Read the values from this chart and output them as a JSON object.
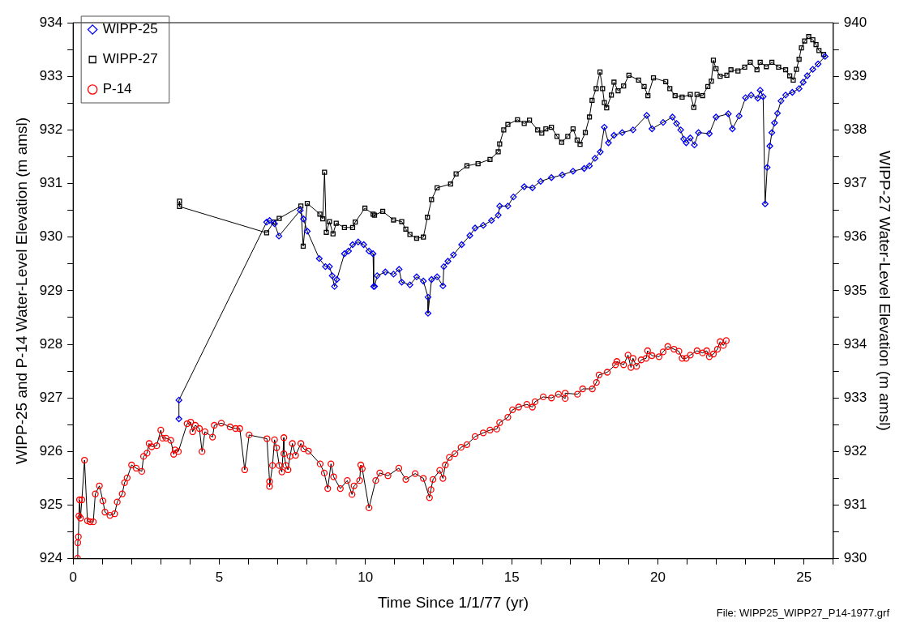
{
  "chart_data": {
    "type": "line",
    "xlabel": "Time Since 1/1/77 (yr)",
    "ylabel": "WIPP-25 and P-14 Water-Level Elevation (m amsl)",
    "y2label": "WIPP-27 Water-Level Elevation (m amsl)",
    "annotations": [
      "File: WIPP25_WIPP27_P14-1977.grf"
    ],
    "legend": "top left",
    "grid": false,
    "xlim": [
      0,
      26
    ],
    "xticks": [
      0,
      {
        "value": 1,
        "label": null
      },
      {
        "value": 2,
        "label": null
      },
      {
        "value": 3,
        "label": null
      },
      {
        "value": 4,
        "label": null
      },
      5,
      {
        "value": 6,
        "label": null
      },
      {
        "value": 7,
        "label": null
      },
      {
        "value": 8,
        "label": null
      },
      {
        "value": 9,
        "label": null
      },
      10,
      {
        "value": 11,
        "label": null
      },
      {
        "value": 12,
        "label": null
      },
      {
        "value": 13,
        "label": null
      },
      {
        "value": 14,
        "label": null
      },
      15,
      {
        "value": 16,
        "label": null
      },
      {
        "value": 17,
        "label": null
      },
      {
        "value": 18,
        "label": null
      },
      {
        "value": 19,
        "label": null
      },
      20,
      {
        "value": 21,
        "label": null
      },
      {
        "value": 22,
        "label": null
      },
      {
        "value": 23,
        "label": null
      },
      {
        "value": 24,
        "label": null
      },
      25,
      {
        "value": 26,
        "label": null
      }
    ],
    "ylim": [
      924,
      934
    ],
    "yticks": [
      924,
      {
        "value": 924.5,
        "label": null
      },
      925,
      {
        "value": 925.5,
        "label": null
      },
      926,
      {
        "value": 926.5,
        "label": null
      },
      927,
      {
        "value": 927.5,
        "label": null
      },
      928,
      {
        "value": 928.5,
        "label": null
      },
      929,
      {
        "value": 929.5,
        "label": null
      },
      930,
      {
        "value": 930.5,
        "label": null
      },
      931,
      {
        "value": 931.5,
        "label": null
      },
      932,
      {
        "value": 932.5,
        "label": null
      },
      933,
      {
        "value": 933.5,
        "label": null
      },
      934
    ],
    "y2lim": [
      930,
      940
    ],
    "y2ticks": [
      930,
      {
        "value": 930.5,
        "label": null
      },
      931,
      {
        "value": 931.5,
        "label": null
      },
      932,
      {
        "value": 932.5,
        "label": null
      },
      933,
      {
        "value": 933.5,
        "label": null
      },
      934,
      {
        "value": 934.5,
        "label": null
      },
      935,
      {
        "value": 935.5,
        "label": null
      },
      936,
      {
        "value": 936.5,
        "label": null
      },
      937,
      {
        "value": 937.5,
        "label": null
      },
      938,
      {
        "value": 938.5,
        "label": null
      },
      939,
      {
        "value": 939.5,
        "label": null
      },
      940
    ],
    "series": [
      {
        "name": "WIPP-25",
        "color": "#0000ff",
        "marker": "diamond",
        "x": [
          3.62,
          3.62,
          6.62,
          6.72,
          6.89,
          7.04,
          7.77,
          7.88,
          8.01,
          8.42,
          8.63,
          8.77,
          8.86,
          8.94,
          9.02,
          9.28,
          9.42,
          9.56,
          9.75,
          9.94,
          10.12,
          10.26,
          10.28,
          10.31,
          10.4,
          10.68,
          10.96,
          11.15,
          11.24,
          11.52,
          11.75,
          11.98,
          12.14,
          12.14,
          12.26,
          12.45,
          12.65,
          12.68,
          12.82,
          13.01,
          13.29,
          13.57,
          13.75,
          14.03,
          14.31,
          14.54,
          14.59,
          14.87,
          15.06,
          15.43,
          15.71,
          15.99,
          16.36,
          16.73,
          17.1,
          17.48,
          17.66,
          17.85,
          18.03,
          18.17,
          18.31,
          18.5,
          18.78,
          19.15,
          19.62,
          19.8,
          20.18,
          20.5,
          20.64,
          20.78,
          20.88,
          20.97,
          21.11,
          21.25,
          21.39,
          21.76,
          21.99,
          22.41,
          22.55,
          22.78,
          23.0,
          23.19,
          23.42,
          23.5,
          23.6,
          23.67,
          23.74,
          23.83,
          23.9,
          23.99,
          24.09,
          24.21,
          24.37,
          24.6,
          24.83,
          24.97,
          25.11,
          25.3,
          25.48,
          25.72
        ],
        "values": [
          926.61,
          926.96,
          930.28,
          930.31,
          930.25,
          930.02,
          930.5,
          930.34,
          930.11,
          929.6,
          929.45,
          929.45,
          929.28,
          929.08,
          929.21,
          929.69,
          929.74,
          929.86,
          929.91,
          929.86,
          929.74,
          929.69,
          929.08,
          929.08,
          929.28,
          929.35,
          929.31,
          929.4,
          929.16,
          929.11,
          929.26,
          929.18,
          928.88,
          928.58,
          929.21,
          929.26,
          929.09,
          929.45,
          929.55,
          929.67,
          929.86,
          930.03,
          930.17,
          930.22,
          930.31,
          930.41,
          930.58,
          930.58,
          930.75,
          930.94,
          930.92,
          931.04,
          931.11,
          931.16,
          931.23,
          931.28,
          931.33,
          931.47,
          931.59,
          932.05,
          931.76,
          931.9,
          931.95,
          932.0,
          932.27,
          932.02,
          932.14,
          932.24,
          932.12,
          932.0,
          931.83,
          931.76,
          931.85,
          931.72,
          931.95,
          931.93,
          932.24,
          932.3,
          932.02,
          932.26,
          932.6,
          932.65,
          932.59,
          932.74,
          932.62,
          930.62,
          931.3,
          931.7,
          931.95,
          932.13,
          932.31,
          932.54,
          932.65,
          932.7,
          932.77,
          932.89,
          933.01,
          933.13,
          933.23,
          933.37
        ]
      },
      {
        "name": "WIPP-27",
        "color": "#000000",
        "marker": "square",
        "axis": "y2",
        "x": [
          3.64,
          3.64,
          6.62,
          6.86,
          7.05,
          7.79,
          7.87,
          8.01,
          8.44,
          8.54,
          8.6,
          8.66,
          8.77,
          8.89,
          9.0,
          9.28,
          9.56,
          9.65,
          9.98,
          10.26,
          10.31,
          10.59,
          10.96,
          11.24,
          11.38,
          11.52,
          11.75,
          11.98,
          12.12,
          12.26,
          12.45,
          12.91,
          13.1,
          13.47,
          13.85,
          14.26,
          14.54,
          14.59,
          14.73,
          14.87,
          15.2,
          15.43,
          15.61,
          15.89,
          16.03,
          16.17,
          16.36,
          16.55,
          16.71,
          16.92,
          17.1,
          17.24,
          17.34,
          17.52,
          17.66,
          17.75,
          17.89,
          18.02,
          18.11,
          18.17,
          18.25,
          18.41,
          18.5,
          18.64,
          18.83,
          19.01,
          19.34,
          19.53,
          19.66,
          19.85,
          20.27,
          20.41,
          20.59,
          20.83,
          21.11,
          21.23,
          21.34,
          21.53,
          21.71,
          21.83,
          21.9,
          21.99,
          22.13,
          22.36,
          22.5,
          22.74,
          22.97,
          23.16,
          23.39,
          23.5,
          23.71,
          23.9,
          24.13,
          24.37,
          24.51,
          24.63,
          24.74,
          24.83,
          24.91,
          25.02,
          25.16,
          25.3,
          25.41,
          25.51,
          25.67
        ],
        "values": [
          936.67,
          936.57,
          936.08,
          936.28,
          936.35,
          936.58,
          935.83,
          936.63,
          936.43,
          936.34,
          937.21,
          936.09,
          936.29,
          936.06,
          936.26,
          936.18,
          936.18,
          936.28,
          936.54,
          936.43,
          936.41,
          936.48,
          936.32,
          936.29,
          936.15,
          936.05,
          935.98,
          936.0,
          936.37,
          936.7,
          936.92,
          936.99,
          937.18,
          937.33,
          937.37,
          937.45,
          937.59,
          937.74,
          938.0,
          938.1,
          938.19,
          938.12,
          938.18,
          938.0,
          937.94,
          938.02,
          938.05,
          937.88,
          937.77,
          937.88,
          938.02,
          937.81,
          937.73,
          937.95,
          938.24,
          938.55,
          938.77,
          939.08,
          938.77,
          938.51,
          938.41,
          938.65,
          938.89,
          938.73,
          938.82,
          939.02,
          938.93,
          938.81,
          938.64,
          938.97,
          938.9,
          938.77,
          938.64,
          938.61,
          938.66,
          938.42,
          938.66,
          938.64,
          938.81,
          938.91,
          939.3,
          939.14,
          939.0,
          939.02,
          939.12,
          939.1,
          939.17,
          939.26,
          939.12,
          939.26,
          939.18,
          939.26,
          939.17,
          939.12,
          939.01,
          938.93,
          939.13,
          939.32,
          939.53,
          939.66,
          939.74,
          939.68,
          939.59,
          939.48,
          939.41
        ]
      },
      {
        "name": "P-14",
        "color": "#ff0000",
        "marker": "circle",
        "x": [
          0.15,
          0.16,
          0.18,
          0.2,
          0.22,
          0.25,
          0.3,
          0.39,
          0.49,
          0.58,
          0.69,
          0.76,
          0.9,
          1.02,
          1.09,
          1.26,
          1.42,
          1.51,
          1.68,
          1.76,
          1.85,
          2.0,
          2.16,
          2.35,
          2.41,
          2.53,
          2.6,
          2.69,
          2.86,
          3.0,
          3.06,
          3.18,
          3.34,
          3.44,
          3.49,
          3.6,
          3.9,
          4.02,
          4.09,
          4.18,
          4.32,
          4.41,
          4.51,
          4.77,
          4.83,
          5.07,
          5.37,
          5.56,
          5.7,
          5.87,
          6.02,
          6.63,
          6.72,
          6.72,
          6.82,
          6.89,
          6.96,
          7.05,
          7.14,
          7.21,
          7.21,
          7.28,
          7.35,
          7.42,
          7.5,
          7.61,
          7.79,
          7.89,
          8.05,
          8.45,
          8.59,
          8.71,
          8.82,
          8.91,
          9.14,
          9.38,
          9.54,
          9.61,
          9.8,
          9.84,
          9.89,
          10.12,
          10.35,
          10.49,
          10.77,
          11.14,
          11.38,
          11.7,
          11.98,
          12.19,
          12.24,
          12.31,
          12.54,
          12.65,
          12.73,
          12.87,
          13.06,
          13.27,
          13.47,
          13.75,
          14.03,
          14.26,
          14.49,
          14.59,
          14.87,
          15.03,
          15.24,
          15.52,
          15.71,
          15.8,
          16.08,
          16.36,
          16.6,
          16.83,
          16.83,
          17.25,
          17.43,
          17.76,
          17.9,
          17.99,
          18.27,
          18.55,
          18.6,
          18.83,
          18.98,
          19.08,
          19.15,
          19.27,
          19.43,
          19.6,
          19.65,
          19.8,
          20.04,
          20.18,
          20.34,
          20.55,
          20.72,
          20.83,
          20.97,
          21.11,
          21.34,
          21.53,
          21.67,
          21.76,
          21.9,
          22.04,
          22.13,
          22.24,
          22.34
        ],
        "values": [
          924.01,
          924.3,
          924.41,
          924.8,
          925.1,
          924.76,
          925.1,
          925.84,
          924.71,
          924.69,
          924.69,
          925.21,
          925.36,
          925.08,
          924.87,
          924.81,
          924.84,
          925.06,
          925.21,
          925.42,
          925.51,
          925.75,
          925.69,
          925.63,
          925.91,
          925.97,
          926.15,
          926.09,
          926.11,
          926.4,
          926.25,
          926.25,
          926.21,
          925.95,
          926.03,
          926.0,
          926.52,
          926.55,
          926.37,
          926.49,
          926.43,
          926.0,
          926.37,
          926.27,
          926.49,
          926.53,
          926.46,
          926.43,
          926.43,
          925.66,
          926.31,
          926.24,
          925.44,
          925.35,
          925.74,
          926.22,
          926.07,
          925.74,
          925.62,
          926.26,
          925.96,
          925.74,
          925.66,
          925.91,
          926.15,
          925.93,
          926.15,
          926.05,
          926.01,
          925.77,
          925.6,
          925.31,
          925.77,
          925.53,
          925.31,
          925.46,
          925.2,
          925.36,
          925.46,
          925.75,
          925.68,
          924.95,
          925.46,
          925.6,
          925.55,
          925.69,
          925.48,
          925.59,
          925.5,
          925.14,
          925.29,
          925.48,
          925.65,
          925.5,
          925.75,
          925.89,
          925.96,
          926.08,
          926.13,
          926.28,
          926.35,
          926.4,
          926.42,
          926.54,
          926.64,
          926.78,
          926.83,
          926.88,
          926.83,
          926.93,
          927.02,
          927.0,
          927.07,
          926.99,
          927.09,
          927.07,
          927.17,
          927.17,
          927.29,
          927.43,
          927.48,
          927.62,
          927.68,
          927.62,
          927.8,
          927.57,
          927.74,
          927.59,
          927.71,
          927.74,
          927.88,
          927.79,
          927.77,
          927.86,
          927.96,
          927.91,
          927.87,
          927.74,
          927.74,
          927.8,
          927.88,
          927.84,
          927.88,
          927.77,
          927.82,
          927.91,
          928.05,
          927.98,
          928.07
        ]
      }
    ]
  }
}
